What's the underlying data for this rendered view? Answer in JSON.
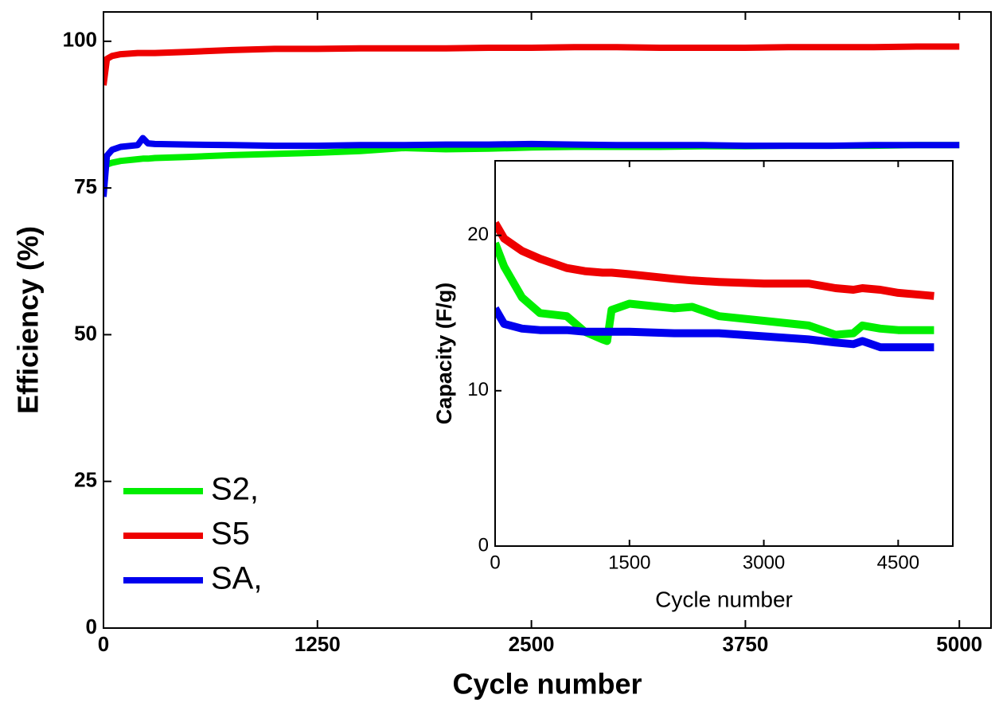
{
  "chart_data": [
    {
      "type": "line",
      "x_label": "Cycle number",
      "y_label": "Efficiency (%)",
      "x": [
        0,
        20,
        50,
        100,
        200,
        230,
        260,
        300,
        500,
        750,
        1000,
        1250,
        1500,
        1750,
        2000,
        2250,
        2500,
        2750,
        3000,
        3250,
        3500,
        3750,
        4000,
        4250,
        4500,
        4750,
        5000
      ],
      "series": [
        {
          "name": "S2,",
          "color": "#00ee00",
          "values": [
            78,
            79,
            79.3,
            79.6,
            79.9,
            80,
            80,
            80.1,
            80.3,
            80.6,
            80.8,
            81,
            81.3,
            81.8,
            81.6,
            81.7,
            81.9,
            82,
            82,
            82,
            82.1,
            82.1,
            82.2,
            82.2,
            82.2,
            82.3,
            82.3
          ]
        },
        {
          "name": "S5",
          "color": "#ee0000",
          "values": [
            92.5,
            97,
            97.5,
            97.8,
            98,
            98,
            98,
            98,
            98.2,
            98.5,
            98.7,
            98.7,
            98.8,
            98.8,
            98.8,
            98.9,
            98.9,
            99,
            99,
            98.9,
            98.9,
            98.9,
            99,
            99,
            99,
            99.1,
            99.1
          ]
        },
        {
          "name": "SA,",
          "color": "#0000ee",
          "values": [
            73.5,
            80.5,
            81.5,
            82,
            82.3,
            83.5,
            82.6,
            82.5,
            82.4,
            82.3,
            82.2,
            82.2,
            82.3,
            82.3,
            82.4,
            82.4,
            82.5,
            82.4,
            82.3,
            82.3,
            82.3,
            82.2,
            82.2,
            82.2,
            82.3,
            82.3,
            82.3
          ]
        }
      ],
      "xlim": [
        0,
        5185
      ],
      "ylim": [
        0,
        105
      ],
      "xticks": [
        0,
        1250,
        2500,
        3750,
        5000
      ],
      "yticks": [
        0,
        25,
        50,
        75,
        100
      ],
      "legend": "lower left"
    },
    {
      "type": "line",
      "x_label": "Cycle number",
      "y_label": "Capacity (F/g)",
      "x": [
        0,
        100,
        300,
        500,
        800,
        1000,
        1200,
        1250,
        1300,
        1500,
        2000,
        2200,
        2500,
        3000,
        3500,
        3800,
        4000,
        4100,
        4300,
        4500,
        4900
      ],
      "series": [
        {
          "color": "#00ee00",
          "values": [
            19.5,
            18,
            16,
            15,
            14.8,
            13.8,
            13.3,
            13.2,
            15.2,
            15.6,
            15.3,
            15.4,
            14.8,
            14.5,
            14.2,
            13.6,
            13.7,
            14.2,
            14,
            13.9,
            13.9
          ]
        },
        {
          "color": "#ee0000",
          "values": [
            20.8,
            19.8,
            19,
            18.5,
            17.9,
            17.7,
            17.6,
            17.6,
            17.6,
            17.5,
            17.2,
            17.1,
            17,
            16.9,
            16.9,
            16.6,
            16.5,
            16.6,
            16.5,
            16.3,
            16.1
          ]
        },
        {
          "color": "#0000ee",
          "values": [
            15.3,
            14.3,
            14,
            13.9,
            13.9,
            13.8,
            13.8,
            13.8,
            13.8,
            13.8,
            13.7,
            13.7,
            13.7,
            13.5,
            13.3,
            13.1,
            13,
            13.2,
            12.8,
            12.8,
            12.8
          ]
        }
      ],
      "xlim": [
        0,
        5110
      ],
      "ylim": [
        0,
        24.8
      ],
      "xticks": [
        0,
        1500,
        3000,
        4500
      ],
      "yticks": [
        0,
        10,
        20
      ]
    }
  ]
}
